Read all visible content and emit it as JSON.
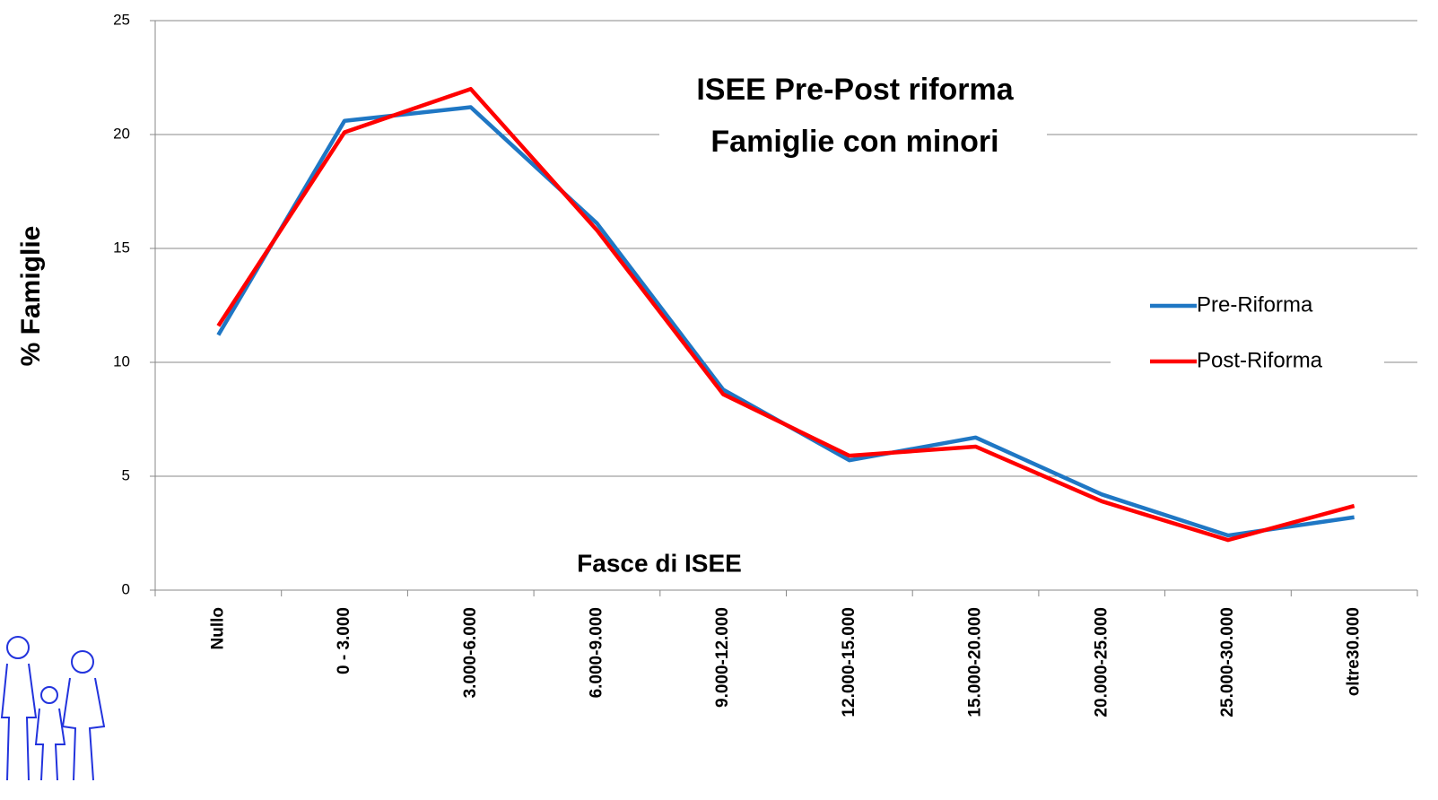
{
  "chart_data": {
    "type": "line",
    "title": "ISEE  Pre-Post riforma",
    "subtitle": "Famiglie con minori",
    "x_label": "Fasce di ISEE",
    "y_label": "% Famiglie",
    "categories": [
      "Nullo",
      "0 - 3.000",
      "3.000-6.000",
      "6.000-9.000",
      "9.000-12.000",
      "12.000-15.000",
      "15.000-20.000",
      "20.000-25.000",
      "25.000-30.000",
      "oltre30.000"
    ],
    "series": [
      {
        "name": "Pre-Riforma",
        "color": "#1f77c4",
        "values": [
          11.2,
          20.6,
          21.2,
          16.1,
          8.8,
          5.7,
          6.7,
          4.2,
          2.4,
          3.2
        ]
      },
      {
        "name": "Post-Riforma",
        "color": "#ff0000",
        "values": [
          11.6,
          20.1,
          22.0,
          15.8,
          8.6,
          5.9,
          6.3,
          3.9,
          2.2,
          3.7
        ]
      }
    ],
    "ylim": [
      0,
      25
    ],
    "yticks": [
      0,
      5,
      10,
      15,
      20,
      25
    ],
    "grid": true,
    "legend": "right"
  }
}
